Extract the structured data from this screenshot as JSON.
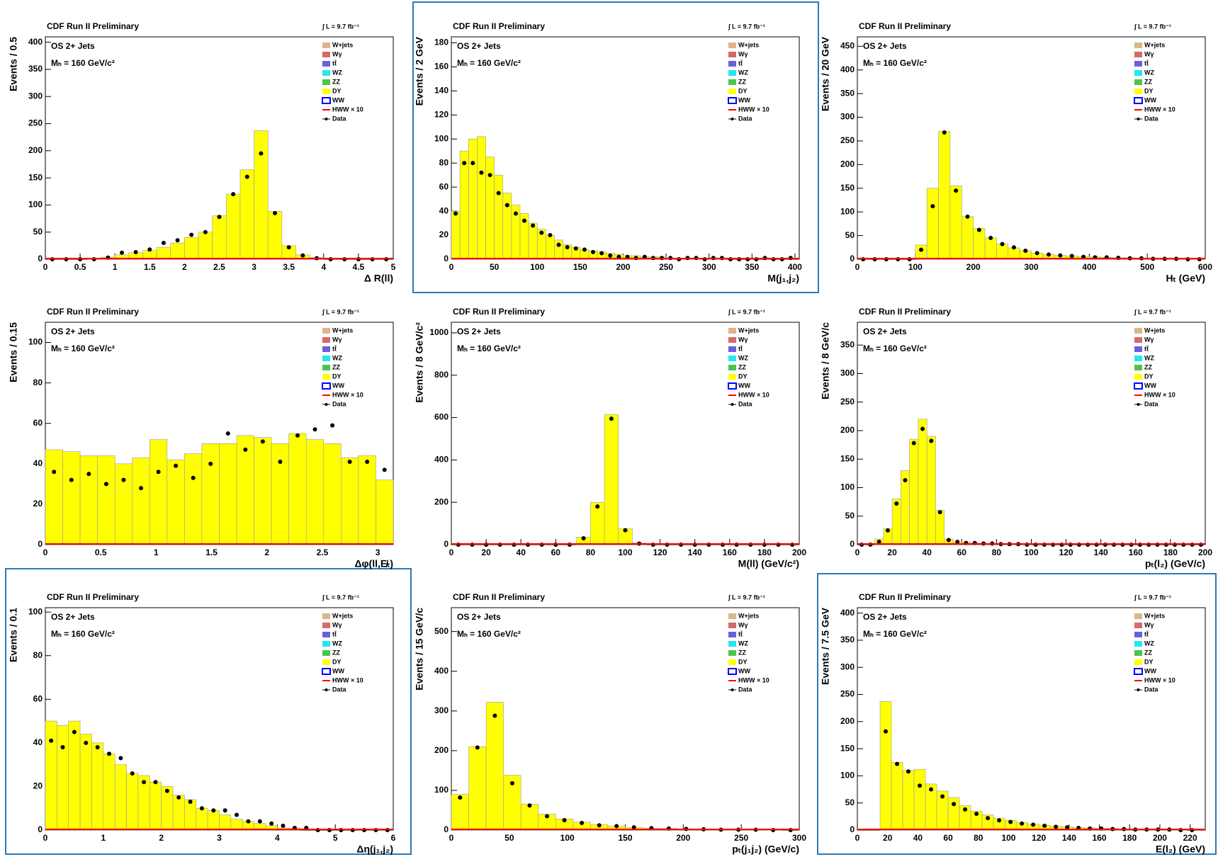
{
  "common": {
    "header": "CDF Run II Preliminary",
    "lumi": "∫ L = 9.7 fb⁻¹",
    "selection": "OS 2+ Jets",
    "mass": "Mₕ = 160 GeV/c²",
    "legend": [
      {
        "name": "W+jets",
        "color": "#dcb58a",
        "style": "fill"
      },
      {
        "name": "Wγ",
        "color": "#d46a6a",
        "style": "fill"
      },
      {
        "name": "tt̄",
        "color": "#6a5fe0",
        "style": "fill"
      },
      {
        "name": "WZ",
        "color": "#22e8f0",
        "style": "fill"
      },
      {
        "name": "ZZ",
        "color": "#4cc44c",
        "style": "fill"
      },
      {
        "name": "DY",
        "color": "#ffff00",
        "style": "fill"
      },
      {
        "name": "WW",
        "color": "#0000ff",
        "style": "outline"
      },
      {
        "name": "HWW × 10",
        "color": "#ff0000",
        "style": "line"
      },
      {
        "name": "Data",
        "color": "#000000",
        "style": "point"
      }
    ]
  },
  "chart_data": [
    {
      "type": "histogram",
      "xlabel": "Δ R(ll)",
      "ylabel": "Events / 0.5",
      "xlim": [
        0,
        5
      ],
      "ylim": [
        0,
        410
      ],
      "xticks": [
        0,
        0.5,
        1,
        1.5,
        2,
        2.5,
        3,
        3.5,
        4,
        4.5,
        5
      ],
      "yticks": [
        0,
        50,
        100,
        150,
        200,
        250,
        300,
        350,
        400
      ],
      "bins": [
        0,
        0.2,
        0.4,
        0.6,
        0.8,
        1,
        1.2,
        1.4,
        1.6,
        1.8,
        2,
        2.2,
        2.4,
        2.6,
        2.8,
        3,
        3.2,
        3.4,
        3.6,
        3.8,
        4,
        4.2,
        4.4,
        4.6,
        4.8,
        5
      ],
      "series": [
        {
          "name": "DY",
          "color": "#ffff00",
          "mark": "bar",
          "values": [
            0,
            0,
            0,
            1,
            4,
            8,
            12,
            16,
            22,
            30,
            40,
            50,
            80,
            120,
            165,
            237,
            88,
            25,
            8,
            3,
            0,
            0,
            0,
            0,
            0
          ]
        },
        {
          "name": "Data",
          "color": "#000000",
          "mark": "point",
          "values": [
            0,
            0,
            0,
            0,
            3,
            12,
            13,
            18,
            30,
            35,
            45,
            50,
            78,
            120,
            152,
            195,
            85,
            22,
            7,
            2,
            0,
            0,
            0,
            0,
            0
          ]
        }
      ]
    },
    {
      "type": "histogram",
      "xlabel": "M(j₁,j₂)",
      "ylabel": "Events / 2 GeV",
      "xlim": [
        0,
        405
      ],
      "ylim": [
        0,
        185
      ],
      "xticks": [
        0,
        50,
        100,
        150,
        200,
        250,
        300,
        350,
        400
      ],
      "yticks": [
        0,
        20,
        40,
        60,
        80,
        100,
        120,
        140,
        160,
        180
      ],
      "bins": [
        0,
        10,
        20,
        30,
        40,
        50,
        60,
        70,
        80,
        90,
        100,
        110,
        120,
        130,
        140,
        150,
        160,
        170,
        180,
        190,
        200,
        210,
        220,
        230,
        240,
        250,
        260,
        270,
        280,
        290,
        300,
        310,
        320,
        330,
        340,
        350,
        360,
        370,
        380,
        390,
        400
      ],
      "series": [
        {
          "name": "DY",
          "color": "#ffff00",
          "mark": "bar",
          "values": [
            40,
            90,
            100,
            102,
            85,
            70,
            55,
            45,
            38,
            30,
            25,
            20,
            16,
            12,
            10,
            8,
            7,
            6,
            5,
            4,
            3,
            3,
            2,
            2,
            2,
            1,
            1,
            1,
            1,
            1,
            1,
            1,
            0,
            0,
            0,
            0,
            0,
            0,
            0,
            0
          ]
        },
        {
          "name": "Data",
          "color": "#000000",
          "mark": "point",
          "values": [
            38,
            80,
            80,
            72,
            70,
            55,
            45,
            38,
            32,
            28,
            22,
            20,
            12,
            10,
            9,
            8,
            6,
            5,
            3,
            2,
            2,
            1,
            2,
            1,
            1,
            1,
            0,
            1,
            1,
            0,
            1,
            1,
            0,
            0,
            0,
            0,
            1,
            0,
            0,
            1
          ]
        }
      ]
    },
    {
      "type": "histogram",
      "xlabel": "Hₜ (GeV)",
      "ylabel": "Events / 20 GeV",
      "xlim": [
        0,
        600
      ],
      "ylim": [
        0,
        470
      ],
      "xticks": [
        0,
        100,
        200,
        300,
        400,
        500,
        600
      ],
      "yticks": [
        0,
        50,
        100,
        150,
        200,
        250,
        300,
        350,
        400,
        450
      ],
      "bins": [
        0,
        20,
        40,
        60,
        80,
        100,
        120,
        140,
        160,
        180,
        200,
        220,
        240,
        260,
        280,
        300,
        320,
        340,
        360,
        380,
        400,
        420,
        440,
        460,
        480,
        500,
        520,
        540,
        560,
        580,
        600
      ],
      "series": [
        {
          "name": "DY",
          "color": "#ffff00",
          "mark": "bar",
          "values": [
            0,
            0,
            0,
            0,
            0,
            30,
            150,
            270,
            155,
            90,
            65,
            45,
            32,
            24,
            18,
            13,
            10,
            8,
            7,
            6,
            5,
            4,
            3,
            3,
            2,
            2,
            1,
            1,
            1,
            1
          ]
        },
        {
          "name": "Data",
          "color": "#000000",
          "mark": "point",
          "values": [
            0,
            0,
            0,
            0,
            0,
            20,
            112,
            268,
            145,
            90,
            62,
            45,
            32,
            25,
            18,
            13,
            10,
            8,
            7,
            5,
            4,
            4,
            3,
            2,
            2,
            1,
            1,
            1,
            0,
            0
          ]
        }
      ]
    },
    {
      "type": "histogram",
      "xlabel": "Δφ(ll,E̸ₜ)",
      "ylabel": "Events / 0.15",
      "xlim": [
        0,
        3.14
      ],
      "ylim": [
        0,
        110
      ],
      "xticks": [
        0,
        0.5,
        1,
        1.5,
        2,
        2.5,
        3
      ],
      "yticks": [
        0,
        20,
        40,
        60,
        80,
        100
      ],
      "bins": [
        0,
        0.157,
        0.314,
        0.471,
        0.628,
        0.785,
        0.942,
        1.099,
        1.256,
        1.413,
        1.57,
        1.727,
        1.884,
        2.041,
        2.198,
        2.355,
        2.512,
        2.669,
        2.826,
        2.983,
        3.14
      ],
      "series": [
        {
          "name": "DY",
          "color": "#ffff00",
          "mark": "bar",
          "values": [
            47,
            46,
            44,
            44,
            40,
            43,
            52,
            42,
            45,
            50,
            50,
            54,
            53,
            50,
            55,
            52,
            50,
            43,
            44,
            32
          ]
        },
        {
          "name": "Data",
          "color": "#000000",
          "mark": "point",
          "values": [
            36,
            32,
            35,
            30,
            32,
            28,
            36,
            39,
            33,
            40,
            55,
            47,
            51,
            41,
            54,
            57,
            59,
            41,
            41,
            37
          ]
        }
      ]
    },
    {
      "type": "histogram",
      "xlabel": "M(ll) (GeV/c²)",
      "ylabel": "Events / 8 GeV/c²",
      "xlim": [
        0,
        200
      ],
      "ylim": [
        0,
        1050
      ],
      "xticks": [
        0,
        20,
        40,
        60,
        80,
        100,
        120,
        140,
        160,
        180,
        200
      ],
      "yticks": [
        0,
        200,
        400,
        600,
        800,
        1000
      ],
      "bins": [
        0,
        8,
        16,
        24,
        32,
        40,
        48,
        56,
        64,
        72,
        80,
        88,
        96,
        104,
        112,
        120,
        128,
        136,
        144,
        152,
        160,
        168,
        176,
        184,
        192,
        200
      ],
      "series": [
        {
          "name": "DY",
          "color": "#ffff00",
          "mark": "bar",
          "values": [
            0,
            0,
            0,
            0,
            0,
            0,
            0,
            0,
            0,
            35,
            200,
            615,
            75,
            8,
            0,
            0,
            0,
            0,
            0,
            0,
            0,
            0,
            0,
            0,
            0
          ]
        },
        {
          "name": "Data",
          "color": "#000000",
          "mark": "point",
          "values": [
            0,
            0,
            0,
            0,
            0,
            0,
            0,
            0,
            0,
            30,
            180,
            595,
            68,
            5,
            0,
            0,
            0,
            0,
            0,
            0,
            0,
            0,
            0,
            0,
            0
          ]
        }
      ]
    },
    {
      "type": "histogram",
      "xlabel": "pₜ(l₂) (GeV/c)",
      "ylabel": "Events / 8 GeV/c",
      "xlim": [
        0,
        200
      ],
      "ylim": [
        0,
        390
      ],
      "xticks": [
        0,
        20,
        40,
        60,
        80,
        100,
        120,
        140,
        160,
        180,
        200
      ],
      "yticks": [
        0,
        50,
        100,
        150,
        200,
        250,
        300,
        350
      ],
      "bins": [
        0,
        5,
        10,
        15,
        20,
        25,
        30,
        35,
        40,
        45,
        50,
        55,
        60,
        65,
        70,
        75,
        80,
        85,
        90,
        95,
        100,
        105,
        110,
        115,
        120,
        125,
        130,
        135,
        140,
        145,
        150,
        155,
        160,
        165,
        170,
        175,
        180,
        185,
        190,
        195,
        200
      ],
      "series": [
        {
          "name": "DY",
          "color": "#ffff00",
          "mark": "bar",
          "values": [
            0,
            0,
            10,
            28,
            80,
            130,
            185,
            220,
            190,
            60,
            10,
            5,
            4,
            3,
            2,
            2,
            2,
            1,
            1,
            1,
            0,
            0,
            0,
            0,
            0,
            0,
            0,
            0,
            0,
            0,
            0,
            0,
            0,
            0,
            0,
            0,
            0,
            0,
            0,
            0
          ]
        },
        {
          "name": "Data",
          "color": "#000000",
          "mark": "point",
          "values": [
            0,
            0,
            5,
            25,
            72,
            113,
            178,
            203,
            182,
            57,
            8,
            5,
            3,
            3,
            2,
            2,
            1,
            1,
            1,
            0,
            0,
            0,
            0,
            0,
            0,
            0,
            0,
            0,
            0,
            0,
            0,
            0,
            0,
            0,
            0,
            0,
            0,
            0,
            0,
            0
          ]
        }
      ]
    },
    {
      "type": "histogram",
      "xlabel": "Δη(j₁,j₂)",
      "ylabel": "Events / 0.1",
      "xlim": [
        0,
        6
      ],
      "ylim": [
        0,
        102
      ],
      "xticks": [
        0,
        1,
        2,
        3,
        4,
        5,
        6
      ],
      "yticks": [
        0,
        20,
        40,
        60,
        80,
        100
      ],
      "bins": [
        0,
        0.2,
        0.4,
        0.6,
        0.8,
        1,
        1.2,
        1.4,
        1.6,
        1.8,
        2,
        2.2,
        2.4,
        2.6,
        2.8,
        3,
        3.2,
        3.4,
        3.6,
        3.8,
        4,
        4.2,
        4.4,
        4.6,
        4.8,
        5,
        5.2,
        5.4,
        5.6,
        5.8,
        6
      ],
      "series": [
        {
          "name": "DY",
          "color": "#ffff00",
          "mark": "bar",
          "values": [
            50,
            48,
            50,
            44,
            40,
            35,
            30,
            26,
            25,
            22,
            20,
            16,
            14,
            10,
            9,
            7,
            5,
            4,
            3,
            2,
            1,
            1,
            0,
            0,
            0,
            0,
            0,
            0,
            0,
            0
          ]
        },
        {
          "name": "Data",
          "color": "#000000",
          "mark": "point",
          "values": [
            41,
            38,
            45,
            40,
            38,
            35,
            33,
            26,
            22,
            22,
            18,
            15,
            13,
            10,
            9,
            9,
            7,
            4,
            4,
            3,
            2,
            1,
            1,
            0,
            0,
            0,
            0,
            0,
            0,
            0
          ]
        }
      ]
    },
    {
      "type": "histogram",
      "xlabel": "pₜ(j₁j₂) (GeV/c)",
      "ylabel": "Events / 15 GeV/c",
      "xlim": [
        0,
        300
      ],
      "ylim": [
        0,
        560
      ],
      "xticks": [
        0,
        50,
        100,
        150,
        200,
        250,
        300
      ],
      "yticks": [
        0,
        100,
        200,
        300,
        400,
        500
      ],
      "bins": [
        0,
        15,
        30,
        45,
        60,
        75,
        90,
        105,
        120,
        135,
        150,
        165,
        180,
        195,
        210,
        225,
        240,
        255,
        270,
        285,
        300
      ],
      "series": [
        {
          "name": "DY",
          "color": "#ffff00",
          "mark": "bar",
          "values": [
            90,
            210,
            322,
            138,
            65,
            40,
            28,
            20,
            14,
            10,
            7,
            5,
            4,
            3,
            2,
            2,
            1,
            1,
            1,
            0
          ]
        },
        {
          "name": "Data",
          "color": "#000000",
          "mark": "point",
          "values": [
            82,
            208,
            288,
            118,
            62,
            35,
            25,
            18,
            12,
            10,
            7,
            5,
            4,
            3,
            2,
            1,
            1,
            1,
            0,
            0
          ]
        }
      ]
    },
    {
      "type": "histogram",
      "xlabel": "E(l₂) (GeV)",
      "ylabel": "Events / 7.5 GeV",
      "xlim": [
        0,
        230
      ],
      "ylim": [
        0,
        410
      ],
      "xticks": [
        0,
        20,
        40,
        60,
        80,
        100,
        120,
        140,
        160,
        180,
        200,
        220
      ],
      "yticks": [
        0,
        50,
        100,
        150,
        200,
        250,
        300,
        350,
        400
      ],
      "bins": [
        15,
        22.5,
        30,
        37.5,
        45,
        52.5,
        60,
        67.5,
        75,
        82.5,
        90,
        97.5,
        105,
        112.5,
        120,
        127.5,
        135,
        142.5,
        150,
        157.5,
        165,
        172.5,
        180,
        187.5,
        195,
        202.5,
        210,
        217.5,
        225
      ],
      "series": [
        {
          "name": "DY",
          "color": "#ffff00",
          "mark": "bar",
          "values": [
            237,
            125,
            110,
            112,
            85,
            72,
            60,
            45,
            35,
            28,
            22,
            18,
            14,
            11,
            9,
            7,
            6,
            5,
            4,
            3,
            3,
            2,
            2,
            1,
            1,
            1,
            1,
            0
          ]
        },
        {
          "name": "Data",
          "color": "#000000",
          "mark": "point",
          "values": [
            182,
            122,
            108,
            82,
            75,
            62,
            48,
            38,
            30,
            22,
            18,
            15,
            12,
            10,
            8,
            6,
            5,
            4,
            3,
            3,
            2,
            2,
            1,
            1,
            1,
            1,
            0,
            0
          ]
        }
      ]
    }
  ]
}
